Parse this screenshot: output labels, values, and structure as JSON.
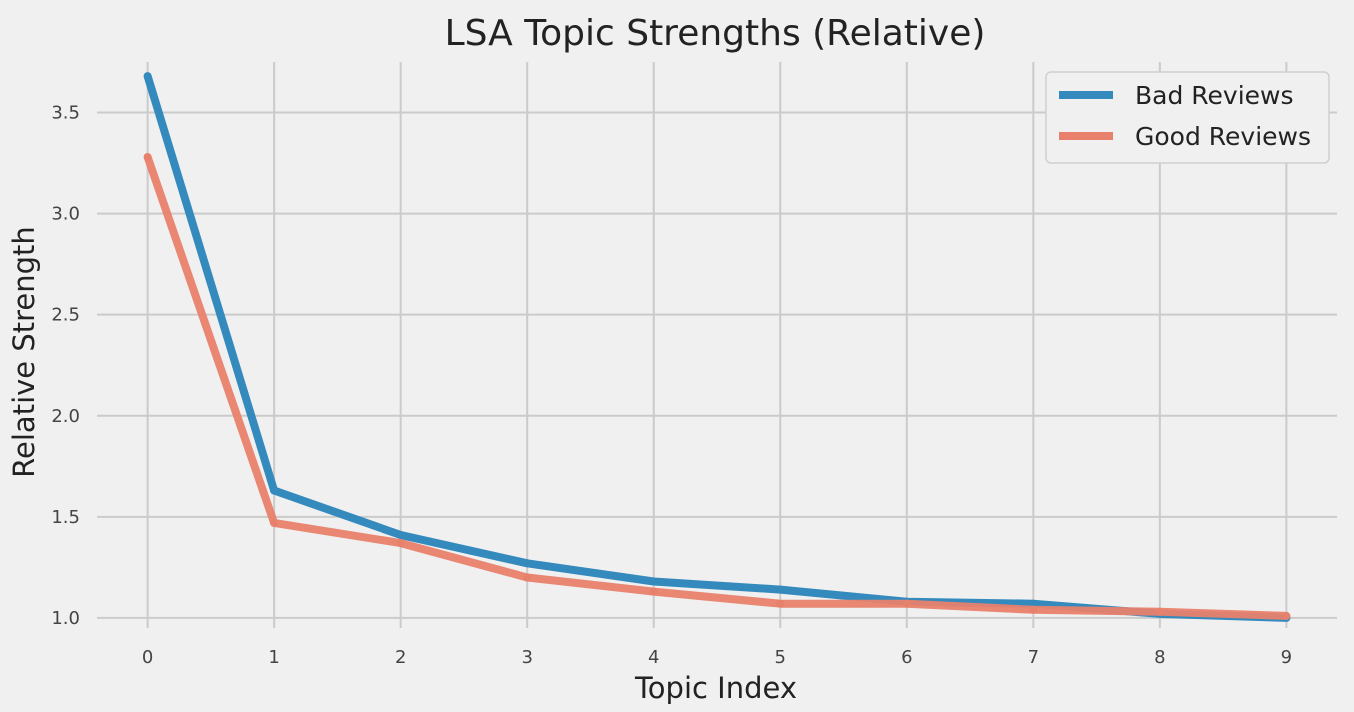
{
  "chart_data": {
    "type": "line",
    "title": "LSA Topic Strengths (Relative)",
    "xlabel": "Topic Index",
    "ylabel": "Relative Strength",
    "x": [
      0,
      1,
      2,
      3,
      4,
      5,
      6,
      7,
      8,
      9
    ],
    "xticks": [
      "0",
      "1",
      "2",
      "3",
      "4",
      "5",
      "6",
      "7",
      "8",
      "9"
    ],
    "yticks": [
      "1.0",
      "1.5",
      "2.0",
      "2.5",
      "3.0",
      "3.5"
    ],
    "xlim": [
      -0.4,
      9.4
    ],
    "ylim": [
      0.95,
      3.75
    ],
    "grid": true,
    "legend_position": "top-right",
    "series": [
      {
        "name": "Bad Reviews",
        "color": "#348abd",
        "values": [
          3.68,
          1.63,
          1.41,
          1.27,
          1.18,
          1.14,
          1.08,
          1.07,
          1.02,
          1.0
        ]
      },
      {
        "name": "Good Reviews",
        "color": "#e8816b",
        "values": [
          3.28,
          1.47,
          1.37,
          1.2,
          1.13,
          1.07,
          1.07,
          1.04,
          1.03,
          1.01
        ]
      }
    ]
  }
}
